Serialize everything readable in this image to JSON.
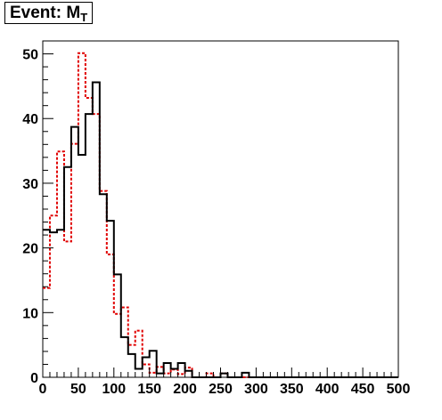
{
  "chart_data": {
    "type": "histogram",
    "title_main": "Event: M",
    "title_sub": "T",
    "xlim": [
      0,
      500
    ],
    "ylim": [
      0,
      52
    ],
    "bin_width": 10,
    "x_ticks": [
      0,
      50,
      100,
      150,
      200,
      250,
      300,
      350,
      400,
      450,
      500
    ],
    "y_ticks": [
      0,
      10,
      20,
      30,
      40,
      50
    ],
    "grid": false,
    "legend": "none",
    "series": [
      {
        "style": "solid",
        "color": "#000000",
        "bin_edges_start": 0,
        "values": [
          22.8,
          22.4,
          22.8,
          32.5,
          38.7,
          34.4,
          40.7,
          45.6,
          28.3,
          24.2,
          15.9,
          6.2,
          3.6,
          1.3,
          3.1,
          4.1,
          0.6,
          2.2,
          1.3,
          2.2,
          1.0,
          0,
          0,
          0,
          0,
          0.6,
          0,
          0,
          0.7,
          0,
          0,
          0,
          0,
          0,
          0,
          0,
          0,
          0,
          0,
          0,
          0,
          0,
          0,
          0,
          0,
          0,
          0,
          0,
          0,
          0
        ]
      },
      {
        "style": "dashed",
        "color": "#e00000",
        "bin_edges_start": 0,
        "values": [
          13.8,
          25.0,
          34.9,
          21.0,
          36.1,
          50.1,
          43.2,
          40.7,
          28.8,
          19.0,
          9.8,
          10.8,
          5.0,
          7.2,
          2.0,
          0.7,
          1.6,
          0.6,
          1.2,
          0.5,
          1.5,
          0,
          0,
          0.6,
          0,
          0.6,
          0,
          0,
          0,
          0,
          0,
          0,
          0,
          0,
          0,
          0,
          0,
          0,
          0,
          0,
          0,
          0,
          0,
          0,
          0,
          0,
          0,
          0,
          0,
          0
        ]
      }
    ]
  }
}
